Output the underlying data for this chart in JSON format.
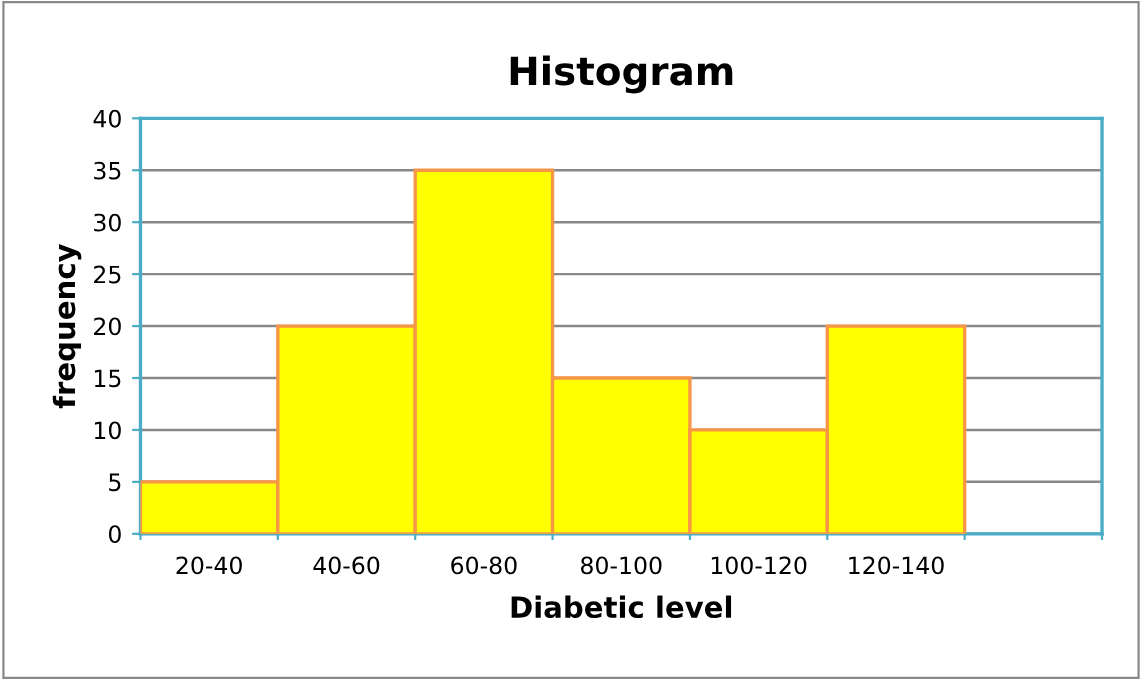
{
  "chart_data": {
    "type": "bar",
    "title": "Histogram",
    "xlabel": "Diabetic level",
    "ylabel": "frequency",
    "categories": [
      "20-40",
      "40-60",
      "60-80",
      "80-100",
      "100-120",
      "120-140",
      null
    ],
    "values": [
      5,
      20,
      35,
      15,
      10,
      20,
      null
    ],
    "color": "#ffff00",
    "ylim": [
      0,
      40
    ],
    "yticks": [
      0,
      5,
      10,
      15,
      20,
      25,
      30,
      35,
      40
    ],
    "grid": "y",
    "legend": false
  }
}
